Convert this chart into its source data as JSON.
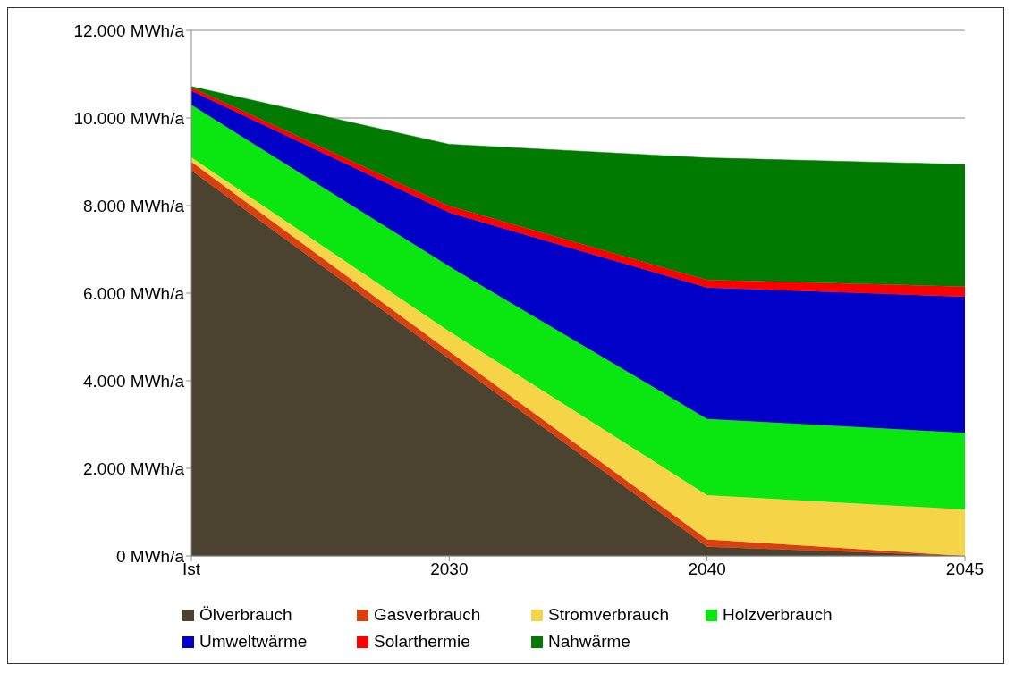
{
  "chart_data": {
    "type": "area",
    "stacked": true,
    "categories": [
      "Ist",
      "2030",
      "2040",
      "2045"
    ],
    "series": [
      {
        "name": "Ölverbrauch",
        "color": "#4b4330",
        "values": [
          8800,
          4500,
          210,
          0
        ]
      },
      {
        "name": "Gasverbrauch",
        "color": "#d9400f",
        "values": [
          200,
          170,
          170,
          0
        ]
      },
      {
        "name": "Stromverbrauch",
        "color": "#f5d547",
        "values": [
          100,
          460,
          1010,
          1060
        ]
      },
      {
        "name": "Holzverbrauch",
        "color": "#0ae60f",
        "values": [
          1200,
          1480,
          1740,
          1750
        ]
      },
      {
        "name": "Umweltwärme",
        "color": "#0000c8",
        "values": [
          320,
          1230,
          3000,
          3110
        ]
      },
      {
        "name": "Solarthermie",
        "color": "#ff0000",
        "values": [
          80,
          150,
          170,
          230
        ]
      },
      {
        "name": "Nahwärme",
        "color": "#007a00",
        "values": [
          20,
          1410,
          2790,
          2790
        ]
      }
    ],
    "ylim": [
      0,
      12000
    ],
    "yticks": [
      {
        "value": 0,
        "label": "0 MWh/a"
      },
      {
        "value": 2000,
        "label": "2.000 MWh/a"
      },
      {
        "value": 4000,
        "label": "4.000 MWh/a"
      },
      {
        "value": 6000,
        "label": "6.000 MWh/a"
      },
      {
        "value": 8000,
        "label": "8.000 MWh/a"
      },
      {
        "value": 10000,
        "label": "10.000 MWh/a"
      },
      {
        "value": 12000,
        "label": "12.000 MWh/a"
      }
    ],
    "grid": "y",
    "legend": "bottom"
  }
}
